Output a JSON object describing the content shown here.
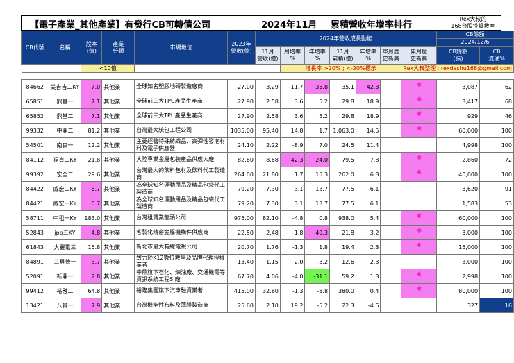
{
  "title": {
    "main": "【電子產業_其他產業】有發行CB可轉債公司",
    "period": "2024年11月",
    "subtitle": "累積營收年增率排行"
  },
  "rex_box": {
    "line1": "Rex大叔的",
    "line2": "168台股投資教室"
  },
  "headers": {
    "code": "CB代號",
    "name": "名稱",
    "capital_l1": "股本",
    "capital_l2": "(億)",
    "industry_l1": "產業",
    "industry_l2": "分類",
    "market_position": "市場地位",
    "rev2023_l1": "2023年",
    "rev2023_l2": "營收(億)",
    "growth_group": "2024年營收成長動能",
    "cb_balance_group": "CB餘額",
    "cb_date": "2024/12/6",
    "rev11_l1": "11月",
    "rev11_l2": "營收(億)",
    "mom_l1": "月增率",
    "mom_l2": "%",
    "yoy_l1": "年增率",
    "yoy_l2": "%",
    "cum_l1": "11月",
    "cum_l2": "累積(億)",
    "cumyoy_l1": "年增率",
    "cumyoy_l2": "%",
    "month_high_l1": "單月歷",
    "month_high_l2": "史新高",
    "cum_high_l1": "累月歷",
    "cum_high_l2": "史新高",
    "cb_bal_l1": "CB餘額",
    "cb_bal_l2": "(張)",
    "cb_float_l1": "CB",
    "cb_float_l2": "流通%"
  },
  "legend": {
    "small_cap": "<10億",
    "growth_note": "增長率 >20% ; <-20%標示",
    "organizer": "Rex大叔整理 : rexdashu168@gmail.com"
  },
  "colors": {
    "header": "#123f8c",
    "highlight": "#f47ef0",
    "negative_highlight": "#72f54e",
    "legend": "#f7ef9c"
  },
  "rows": [
    {
      "code": "84662",
      "name": "美吉吉二KY",
      "capital": "7.0",
      "industry": "其他業",
      "market": "全球知名塑膠地磚製造廠商",
      "rev2023": "27.00",
      "rev11": "3.29",
      "mom": "-11.7",
      "yoy": "35.8",
      "cum": "35.1",
      "cumyoy": "42.3",
      "month_high": "",
      "cum_high": "*",
      "cb_bal": "3,087",
      "cb_float": "62"
    },
    {
      "code": "65851",
      "name": "鼎基一",
      "capital": "7.1",
      "industry": "其他業",
      "market": "全球前三大TPU產品生產商",
      "rev2023": "27.90",
      "rev11": "2.58",
      "mom": "3.6",
      "yoy": "5.2",
      "cum": "29.8",
      "cumyoy": "18.9",
      "month_high": "",
      "cum_high": "*",
      "cb_bal": "3,417",
      "cb_float": "68"
    },
    {
      "code": "65852",
      "name": "鼎基二",
      "capital": "7.1",
      "industry": "其他業",
      "market": "全球前三大TPU產品生產商",
      "rev2023": "27.90",
      "rev11": "2.58",
      "mom": "3.6",
      "yoy": "5.2",
      "cum": "29.8",
      "cumyoy": "18.9",
      "month_high": "",
      "cum_high": "*",
      "cb_bal": "929",
      "cb_float": "46"
    },
    {
      "code": "99332",
      "name": "中鼎二",
      "capital": "81.2",
      "industry": "其他業",
      "market": "台灣最大統包工程公司",
      "rev2023": "1035.00",
      "rev11": "95.40",
      "mom": "14.8",
      "yoy": "1.7",
      "cum": "1,063.0",
      "cumyoy": "14.5",
      "month_high": "",
      "cum_high": "*",
      "cb_bal": "60,000",
      "cb_float": "100"
    },
    {
      "code": "54501",
      "name": "南良一",
      "capital": "12.2",
      "industry": "其他業",
      "market": "主要經營特殊紡織品、高彈性發泡材料及電子供應器",
      "rev2023": "24.10",
      "rev11": "2.22",
      "mom": "-8.9",
      "yoy": "7.0",
      "cum": "24.5",
      "cumyoy": "11.4",
      "month_high": "",
      "cum_high": "",
      "cb_bal": "4,998",
      "cb_float": "100"
    },
    {
      "code": "84112",
      "name": "福貞二KY",
      "capital": "21.8",
      "industry": "其他業",
      "market": "大陸專業金屬包裝產品供應大廠",
      "rev2023": "82.60",
      "rev11": "8.68",
      "mom": "42.3",
      "yoy": "24.0",
      "cum": "79.5",
      "cumyoy": "7.8",
      "month_high": "",
      "cum_high": "*",
      "cb_bal": "2,860",
      "cb_float": "72"
    },
    {
      "code": "99392",
      "name": "宏全二",
      "capital": "29.6",
      "industry": "其他業",
      "market": "台灣最大的飲料包材及飲料代工製造商",
      "rev2023": "264.00",
      "rev11": "21.80",
      "mom": "1.7",
      "yoy": "15.3",
      "cum": "262.0",
      "cumyoy": "6.8",
      "month_high": "",
      "cum_high": "*",
      "cb_bal": "40,000",
      "cb_float": "100"
    },
    {
      "code": "84422",
      "name": "威宏二KY",
      "capital": "6.7",
      "industry": "其他業",
      "market": "為全球知名運動用品及精品包袋代工製造商",
      "rev2023": "79.20",
      "rev11": "7.30",
      "mom": "3.1",
      "yoy": "13.7",
      "cum": "77.5",
      "cumyoy": "6.1",
      "month_high": "",
      "cum_high": "",
      "cb_bal": "3,620",
      "cb_float": "91"
    },
    {
      "code": "84421",
      "name": "威宏一KY",
      "capital": "6.7",
      "industry": "其他業",
      "market": "為全球知名運動用品及精品包袋代工製造商",
      "rev2023": "79.20",
      "rev11": "7.30",
      "mom": "3.1",
      "yoy": "13.7",
      "cum": "77.5",
      "cumyoy": "6.1",
      "month_high": "",
      "cum_high": "",
      "cb_bal": "1,583",
      "cb_float": "53"
    },
    {
      "code": "58711",
      "name": "中租一KY",
      "capital": "183.0",
      "industry": "其他業",
      "market": "台灣租賃業龍頭公司",
      "rev2023": "975.00",
      "rev11": "82.10",
      "mom": "-4.8",
      "yoy": "0.8",
      "cum": "938.0",
      "cumyoy": "5.4",
      "month_high": "",
      "cum_high": "*",
      "cb_bal": "60,000",
      "cb_float": "100"
    },
    {
      "code": "52843",
      "name": "jpp三KY",
      "capital": "4.8",
      "industry": "其他業",
      "market": "客製化精密金屬機構件供應商",
      "rev2023": "22.50",
      "rev11": "2.48",
      "mom": "-1.8",
      "yoy": "49.3",
      "cum": "21.8",
      "cumyoy": "3.2",
      "month_high": "",
      "cum_high": "*",
      "cb_bal": "3,000",
      "cb_float": "100"
    },
    {
      "code": "61843",
      "name": "大豐電三",
      "capital": "15.8",
      "industry": "其他業",
      "market": "新北市最大有線電視公司",
      "rev2023": "20.70",
      "rev11": "1.76",
      "mom": "-1.3",
      "yoy": "1.8",
      "cum": "19.4",
      "cumyoy": "2.3",
      "month_high": "",
      "cum_high": "*",
      "cb_bal": "15,000",
      "cb_float": "100"
    },
    {
      "code": "84891",
      "name": "三貝德一",
      "capital": "3.7",
      "industry": "其他業",
      "market": "致力於K12數位教學及品牌代理授權業者",
      "rev2023": "13.40",
      "rev11": "1.15",
      "mom": "2.0",
      "yoy": "-3.2",
      "cum": "12.6",
      "cumyoy": "2.3",
      "month_high": "",
      "cum_high": "",
      "cb_bal": "3,000",
      "cb_float": "100"
    },
    {
      "code": "52091",
      "name": "新鼎一",
      "capital": "2.8",
      "industry": "其他業",
      "market": "中鼎旗下石化、煉油廠、交通機電等資訊系統工程SI廠",
      "rev2023": "67.70",
      "rev11": "4.06",
      "mom": "-4.0",
      "yoy": "-31.1",
      "cum": "59.2",
      "cumyoy": "1.3",
      "month_high": "",
      "cum_high": "*",
      "cb_bal": "2,998",
      "cb_float": "100"
    },
    {
      "code": "99412",
      "name": "裕融二",
      "capital": "64.8",
      "industry": "其他業",
      "market": "裕隆集團旗下汽車融資業者",
      "rev2023": "415.00",
      "rev11": "32.80",
      "mom": "-1.3",
      "yoy": "-8.8",
      "cum": "380.0",
      "cumyoy": "0.4",
      "month_high": "",
      "cum_high": "*",
      "cb_bal": "80,000",
      "cb_float": "100"
    },
    {
      "code": "13421",
      "name": "八貫一",
      "capital": "7.9",
      "industry": "其他業",
      "market": "台灣機能性布料及薄膜製造商",
      "rev2023": "25.60",
      "rev11": "2.10",
      "mom": "19.2",
      "yoy": "-5.2",
      "cum": "22.3",
      "cumyoy": "-4.6",
      "month_high": "",
      "cum_high": "",
      "cb_bal": "327",
      "cb_float": "16"
    }
  ]
}
